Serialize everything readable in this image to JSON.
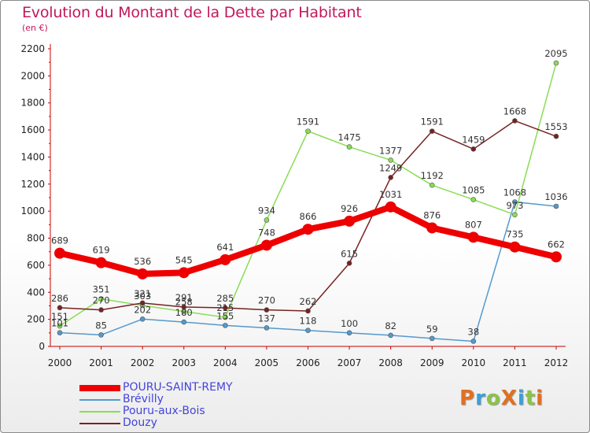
{
  "title": "Evolution du Montant de la Dette par Habitant",
  "subtitle": "(en €)",
  "logo": {
    "text": "ProXiti",
    "colors": [
      "#e07020",
      "#3aa0d8",
      "#8bc34a",
      "#e07020",
      "#3aa0d8",
      "#8bc34a",
      "#e07020"
    ]
  },
  "chart_data": {
    "type": "line",
    "title": "Evolution du Montant de la Dette par Habitant",
    "subtitle": "(en €)",
    "x": [
      "2000",
      "2001",
      "2002",
      "2003",
      "2004",
      "2005",
      "2006",
      "2007",
      "2008",
      "2009",
      "2010",
      "2011",
      "2012"
    ],
    "ylim": [
      0,
      2200
    ],
    "yticks": [
      "0",
      "200",
      "400",
      "600",
      "800",
      "1000",
      "1200",
      "1400",
      "1600",
      "1800",
      "2000",
      "2200"
    ],
    "grid": false,
    "legend_position": "bottom-left",
    "series": [
      {
        "name": "POURU-SAINT-REMY",
        "color": "#ee0000",
        "values": [
          689,
          619,
          536,
          545,
          641,
          748,
          866,
          926,
          1031,
          876,
          807,
          735,
          662
        ]
      },
      {
        "name": "Brévilly",
        "color": "#5599cc",
        "values": [
          101,
          85,
          202,
          180,
          155,
          137,
          118,
          100,
          82,
          59,
          38,
          1068,
          1036
        ]
      },
      {
        "name": "Pouru-aux-Bois",
        "color": "#88dd55",
        "values": [
          151,
          351,
          303,
          258,
          215,
          934,
          1591,
          1475,
          1377,
          1192,
          1085,
          973,
          2095
        ]
      },
      {
        "name": "Douzy",
        "color": "#772222",
        "values": [
          286,
          270,
          321,
          291,
          285,
          270,
          262,
          615,
          1249,
          1591,
          1459,
          1668,
          1553
        ]
      }
    ],
    "labels": [
      [
        "689",
        "619",
        "536",
        "545",
        "641",
        "748",
        "866",
        "926",
        "1031",
        "876",
        "807",
        "735",
        "662"
      ],
      [
        "101",
        "85",
        "202",
        "180",
        "155",
        "137",
        "118",
        "100",
        "82",
        "59",
        "38",
        "1068",
        "1036"
      ],
      [
        "151",
        "351",
        "303",
        "258",
        "215",
        "934",
        "1591",
        "1475",
        "1377",
        "1192",
        "1085",
        "973",
        "2095"
      ],
      [
        "286",
        "270",
        "321",
        "291",
        "285",
        "270",
        "262",
        "615",
        "1249",
        "1591",
        "1459",
        "1668",
        "1553"
      ]
    ]
  }
}
